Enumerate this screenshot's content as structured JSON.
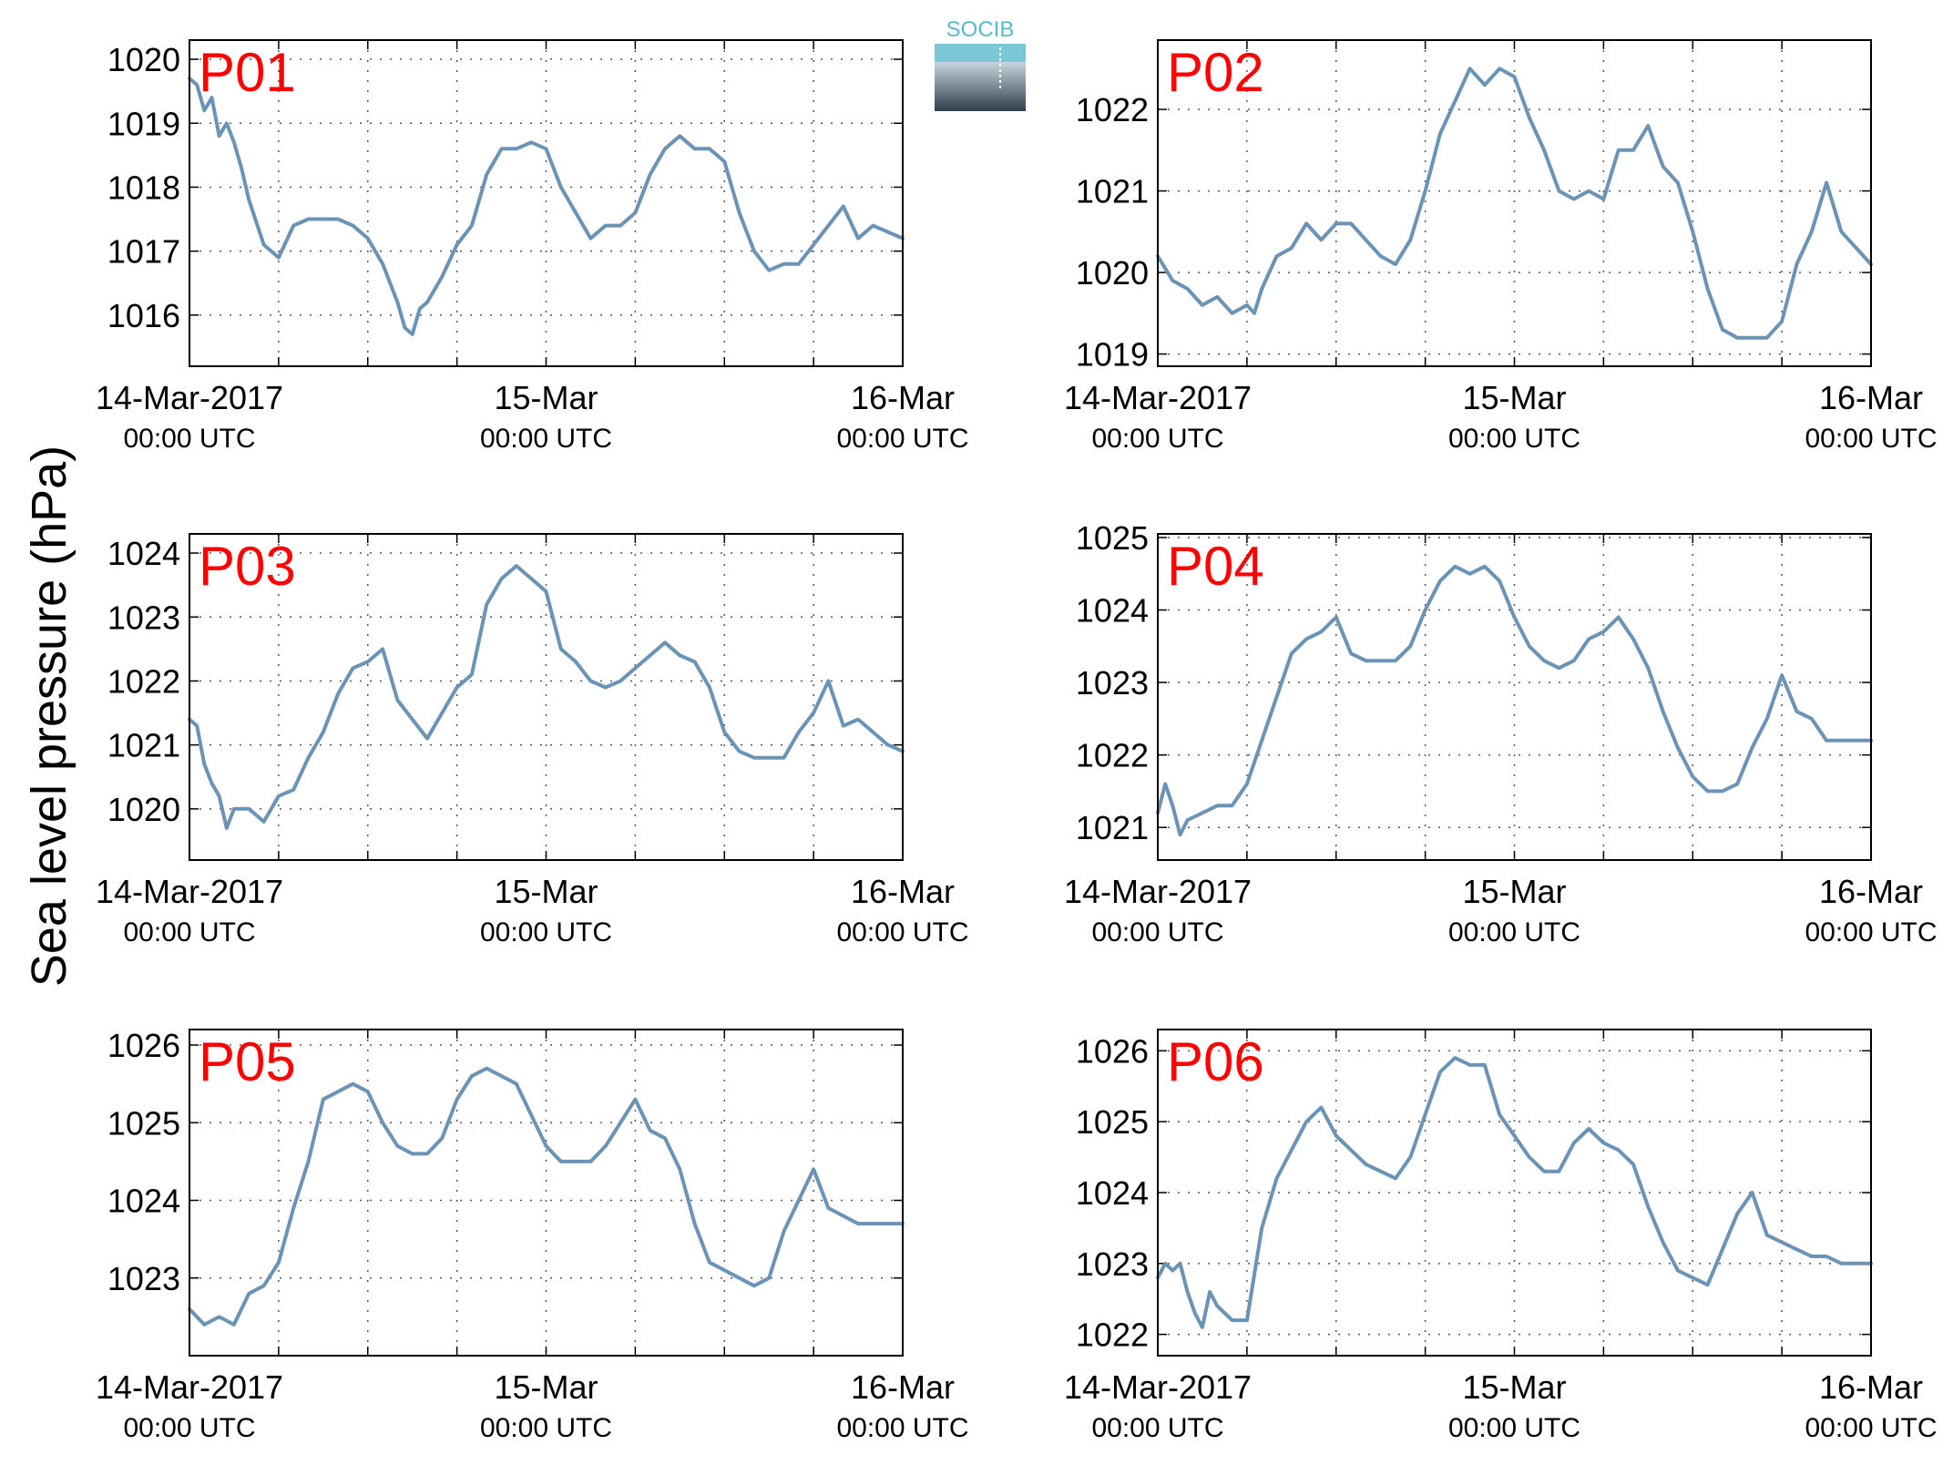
{
  "figure": {
    "ylabel": "Sea level pressure (hPa)",
    "logo_text": "SOCIB",
    "colors": {
      "line": "#6b93b5",
      "panel_label": "#ff0000",
      "axis": "#000000",
      "grid": "#555555",
      "logo_top": "#5bb8cc",
      "logo_bottom": "#2e3f4c"
    },
    "x_ticks": [
      {
        "t": 0,
        "line1": "14-Mar-2017",
        "line2": "00:00 UTC"
      },
      {
        "t": 24,
        "line1": "15-Mar",
        "line2": "00:00 UTC"
      },
      {
        "t": 48,
        "line1": "16-Mar",
        "line2": "00:00 UTC"
      }
    ]
  },
  "chart_data": [
    {
      "type": "line",
      "label": "P01",
      "x_unit": "hours since 14-Mar-2017 00:00 UTC",
      "xlim": [
        0,
        48
      ],
      "ylim": [
        1015.2,
        1020.3
      ],
      "yticks": [
        1016,
        1017,
        1018,
        1019,
        1020
      ],
      "grid": true,
      "x": [
        0,
        0.5,
        1,
        1.5,
        2,
        2.5,
        3,
        3.5,
        4,
        5,
        6,
        7,
        8,
        9,
        10,
        11,
        12,
        13,
        14,
        14.5,
        15,
        15.5,
        16,
        17,
        18,
        19,
        20,
        21,
        22,
        23,
        24,
        25,
        26,
        27,
        28,
        29,
        30,
        31,
        32,
        33,
        34,
        35,
        36,
        37,
        38,
        39,
        40,
        41,
        42,
        43,
        44,
        45,
        46,
        47,
        48
      ],
      "y": [
        1019.7,
        1019.6,
        1019.2,
        1019.4,
        1018.8,
        1019.0,
        1018.7,
        1018.3,
        1017.8,
        1017.1,
        1016.9,
        1017.4,
        1017.5,
        1017.5,
        1017.5,
        1017.4,
        1017.2,
        1016.8,
        1016.2,
        1015.8,
        1015.7,
        1016.1,
        1016.2,
        1016.6,
        1017.1,
        1017.4,
        1018.2,
        1018.6,
        1018.6,
        1018.7,
        1018.6,
        1018.0,
        1017.6,
        1017.2,
        1017.4,
        1017.4,
        1017.6,
        1018.2,
        1018.6,
        1018.8,
        1018.6,
        1018.6,
        1018.4,
        1017.6,
        1017.0,
        1016.7,
        1016.8,
        1016.8,
        1017.1,
        1017.4,
        1017.7,
        1017.2,
        1017.4,
        1017.3,
        1017.2
      ]
    },
    {
      "type": "line",
      "label": "P02",
      "x_unit": "hours since 14-Mar-2017 00:00 UTC",
      "xlim": [
        0,
        48
      ],
      "ylim": [
        1018.85,
        1022.85
      ],
      "yticks": [
        1019,
        1020,
        1021,
        1022
      ],
      "grid": true,
      "x": [
        0,
        1,
        2,
        3,
        4,
        5,
        6,
        6.5,
        7,
        8,
        9,
        10,
        11,
        12,
        13,
        14,
        15,
        16,
        17,
        18,
        19,
        20,
        21,
        22,
        23,
        24,
        25,
        26,
        27,
        28,
        29,
        30,
        31,
        32,
        33,
        34,
        35,
        36,
        37,
        38,
        39,
        40,
        41,
        42,
        43,
        44,
        45,
        46,
        47,
        48
      ],
      "y": [
        1020.2,
        1019.9,
        1019.8,
        1019.6,
        1019.7,
        1019.5,
        1019.6,
        1019.5,
        1019.8,
        1020.2,
        1020.3,
        1020.6,
        1020.4,
        1020.6,
        1020.6,
        1020.4,
        1020.2,
        1020.1,
        1020.4,
        1021.0,
        1021.7,
        1022.1,
        1022.5,
        1022.3,
        1022.5,
        1022.4,
        1021.9,
        1021.5,
        1021.0,
        1020.9,
        1021.0,
        1020.9,
        1021.5,
        1021.5,
        1021.8,
        1021.3,
        1021.1,
        1020.5,
        1019.8,
        1019.3,
        1019.2,
        1019.2,
        1019.2,
        1019.4,
        1020.1,
        1020.5,
        1021.1,
        1020.5,
        1020.3,
        1020.1
      ]
    },
    {
      "type": "line",
      "label": "P03",
      "x_unit": "hours since 14-Mar-2017 00:00 UTC",
      "xlim": [
        0,
        48
      ],
      "ylim": [
        1019.2,
        1024.3
      ],
      "yticks": [
        1020,
        1021,
        1022,
        1023,
        1024
      ],
      "grid": true,
      "x": [
        0,
        0.5,
        1,
        1.5,
        2,
        2.5,
        3,
        4,
        5,
        6,
        7,
        8,
        9,
        10,
        11,
        12,
        13,
        14,
        15,
        16,
        17,
        18,
        19,
        20,
        21,
        22,
        23,
        24,
        25,
        26,
        27,
        28,
        29,
        30,
        31,
        32,
        33,
        34,
        35,
        36,
        37,
        38,
        39,
        40,
        41,
        42,
        43,
        44,
        45,
        46,
        47,
        48
      ],
      "y": [
        1021.4,
        1021.3,
        1020.7,
        1020.4,
        1020.2,
        1019.7,
        1020.0,
        1020.0,
        1019.8,
        1020.2,
        1020.3,
        1020.8,
        1021.2,
        1021.8,
        1022.2,
        1022.3,
        1022.5,
        1021.7,
        1021.4,
        1021.1,
        1021.5,
        1021.9,
        1022.1,
        1023.2,
        1023.6,
        1023.8,
        1023.6,
        1023.4,
        1022.5,
        1022.3,
        1022.0,
        1021.9,
        1022.0,
        1022.2,
        1022.4,
        1022.6,
        1022.4,
        1022.3,
        1021.9,
        1021.2,
        1020.9,
        1020.8,
        1020.8,
        1020.8,
        1021.2,
        1021.5,
        1022.0,
        1021.3,
        1021.4,
        1021.2,
        1021.0,
        1020.9
      ]
    },
    {
      "type": "line",
      "label": "P04",
      "x_unit": "hours since 14-Mar-2017 00:00 UTC",
      "xlim": [
        0,
        48
      ],
      "ylim": [
        1020.55,
        1025.05
      ],
      "yticks": [
        1021,
        1022,
        1023,
        1024,
        1025
      ],
      "grid": true,
      "x": [
        0,
        0.5,
        1,
        1.5,
        2,
        3,
        4,
        5,
        6,
        7,
        8,
        9,
        10,
        11,
        12,
        13,
        14,
        15,
        16,
        17,
        18,
        19,
        20,
        21,
        22,
        23,
        24,
        25,
        26,
        27,
        28,
        29,
        30,
        31,
        32,
        33,
        34,
        35,
        36,
        37,
        38,
        39,
        40,
        41,
        42,
        43,
        44,
        45,
        46,
        47,
        48
      ],
      "y": [
        1021.2,
        1021.6,
        1021.3,
        1020.9,
        1021.1,
        1021.2,
        1021.3,
        1021.3,
        1021.6,
        1022.2,
        1022.8,
        1023.4,
        1023.6,
        1023.7,
        1023.9,
        1023.4,
        1023.3,
        1023.3,
        1023.3,
        1023.5,
        1024.0,
        1024.4,
        1024.6,
        1024.5,
        1024.6,
        1024.4,
        1023.9,
        1023.5,
        1023.3,
        1023.2,
        1023.3,
        1023.6,
        1023.7,
        1023.9,
        1023.6,
        1023.2,
        1022.6,
        1022.1,
        1021.7,
        1021.5,
        1021.5,
        1021.6,
        1022.1,
        1022.5,
        1023.1,
        1022.6,
        1022.5,
        1022.2,
        1022.2,
        1022.2,
        1022.2
      ]
    },
    {
      "type": "line",
      "label": "P05",
      "x_unit": "hours since 14-Mar-2017 00:00 UTC",
      "xlim": [
        0,
        48
      ],
      "ylim": [
        1022.0,
        1026.2
      ],
      "yticks": [
        1023,
        1024,
        1025,
        1026
      ],
      "grid": true,
      "x": [
        0,
        1,
        2,
        3,
        4,
        5,
        6,
        7,
        8,
        9,
        10,
        11,
        12,
        13,
        14,
        15,
        16,
        17,
        18,
        19,
        20,
        21,
        22,
        23,
        24,
        25,
        26,
        27,
        28,
        29,
        30,
        31,
        32,
        33,
        34,
        35,
        36,
        37,
        38,
        39,
        40,
        41,
        42,
        43,
        44,
        45,
        46,
        47,
        48
      ],
      "y": [
        1022.6,
        1022.4,
        1022.5,
        1022.4,
        1022.8,
        1022.9,
        1023.2,
        1023.9,
        1024.5,
        1025.3,
        1025.4,
        1025.5,
        1025.4,
        1025.0,
        1024.7,
        1024.6,
        1024.6,
        1024.8,
        1025.3,
        1025.6,
        1025.7,
        1025.6,
        1025.5,
        1025.1,
        1024.7,
        1024.5,
        1024.5,
        1024.5,
        1024.7,
        1025.0,
        1025.3,
        1024.9,
        1024.8,
        1024.4,
        1023.7,
        1023.2,
        1023.1,
        1023.0,
        1022.9,
        1023.0,
        1023.6,
        1024.0,
        1024.4,
        1023.9,
        1023.8,
        1023.7,
        1023.7,
        1023.7,
        1023.7
      ]
    },
    {
      "type": "line",
      "label": "P06",
      "x_unit": "hours since 14-Mar-2017 00:00 UTC",
      "xlim": [
        0,
        48
      ],
      "ylim": [
        1021.7,
        1026.3
      ],
      "yticks": [
        1022,
        1023,
        1024,
        1025,
        1026
      ],
      "grid": true,
      "x": [
        0,
        0.5,
        1,
        1.5,
        2,
        2.5,
        3,
        3.5,
        4,
        5,
        6,
        7,
        8,
        9,
        10,
        11,
        12,
        13,
        14,
        15,
        16,
        17,
        18,
        19,
        20,
        21,
        22,
        23,
        24,
        25,
        26,
        27,
        28,
        29,
        30,
        31,
        32,
        33,
        34,
        35,
        36,
        37,
        38,
        39,
        40,
        41,
        42,
        43,
        44,
        45,
        46,
        47,
        48
      ],
      "y": [
        1022.8,
        1023.0,
        1022.9,
        1023.0,
        1022.6,
        1022.3,
        1022.1,
        1022.6,
        1022.4,
        1022.2,
        1022.2,
        1023.5,
        1024.2,
        1024.6,
        1025.0,
        1025.2,
        1024.8,
        1024.6,
        1024.4,
        1024.3,
        1024.2,
        1024.5,
        1025.1,
        1025.7,
        1025.9,
        1025.8,
        1025.8,
        1025.1,
        1024.8,
        1024.5,
        1024.3,
        1024.3,
        1024.7,
        1024.9,
        1024.7,
        1024.6,
        1024.4,
        1023.8,
        1023.3,
        1022.9,
        1022.8,
        1022.7,
        1023.2,
        1023.7,
        1024.0,
        1023.4,
        1023.3,
        1023.2,
        1023.1,
        1023.1,
        1023.0,
        1023.0,
        1023.0
      ]
    }
  ]
}
